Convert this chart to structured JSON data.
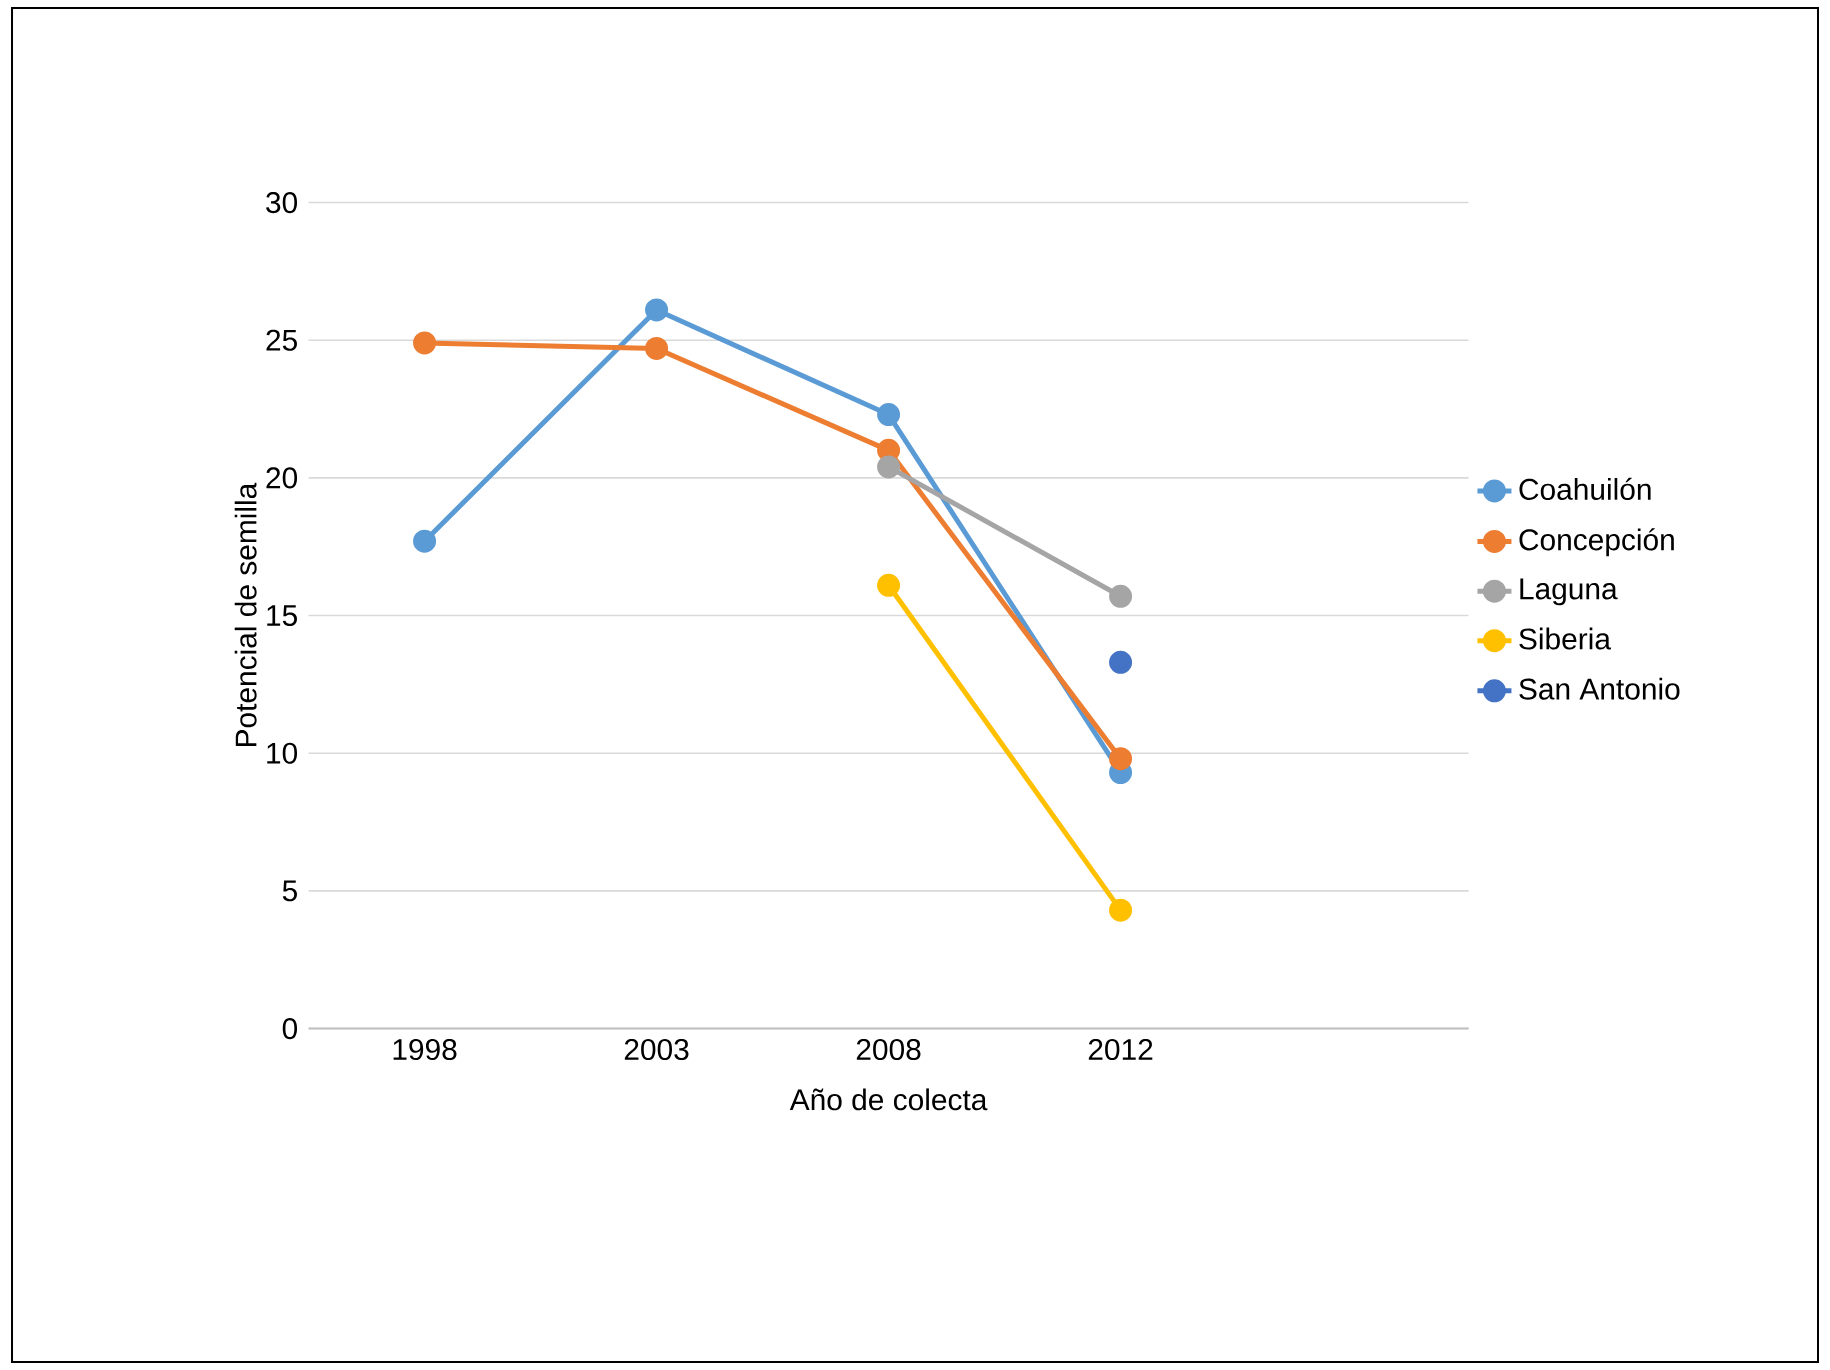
{
  "chart_data": {
    "type": "line",
    "xlabel": "Año de colecta",
    "ylabel": "Potencial de semilla",
    "categories": [
      "1998",
      "2003",
      "2008",
      "2012",
      null
    ],
    "series": [
      {
        "name": "Coahuilón",
        "color": "#5b9bd5",
        "values": [
          17.7,
          26.1,
          22.3,
          9.3,
          null
        ]
      },
      {
        "name": "Concepción",
        "color": "#ed7d31",
        "values": [
          24.9,
          24.7,
          21.0,
          9.8,
          null
        ]
      },
      {
        "name": "Laguna",
        "color": "#a5a5a5",
        "values": [
          null,
          null,
          20.4,
          15.7,
          null
        ]
      },
      {
        "name": "Siberia",
        "color": "#ffc000",
        "values": [
          null,
          null,
          16.1,
          4.3,
          null
        ]
      },
      {
        "name": "San Antonio",
        "color": "#4472c4",
        "values": [
          null,
          null,
          null,
          13.3,
          null
        ]
      }
    ],
    "ylim": [
      0,
      30
    ],
    "yticks": [
      0,
      5,
      10,
      15,
      20,
      25,
      30
    ],
    "grid": "y",
    "legend": "right",
    "marker": "circle",
    "line_style": "solid"
  }
}
